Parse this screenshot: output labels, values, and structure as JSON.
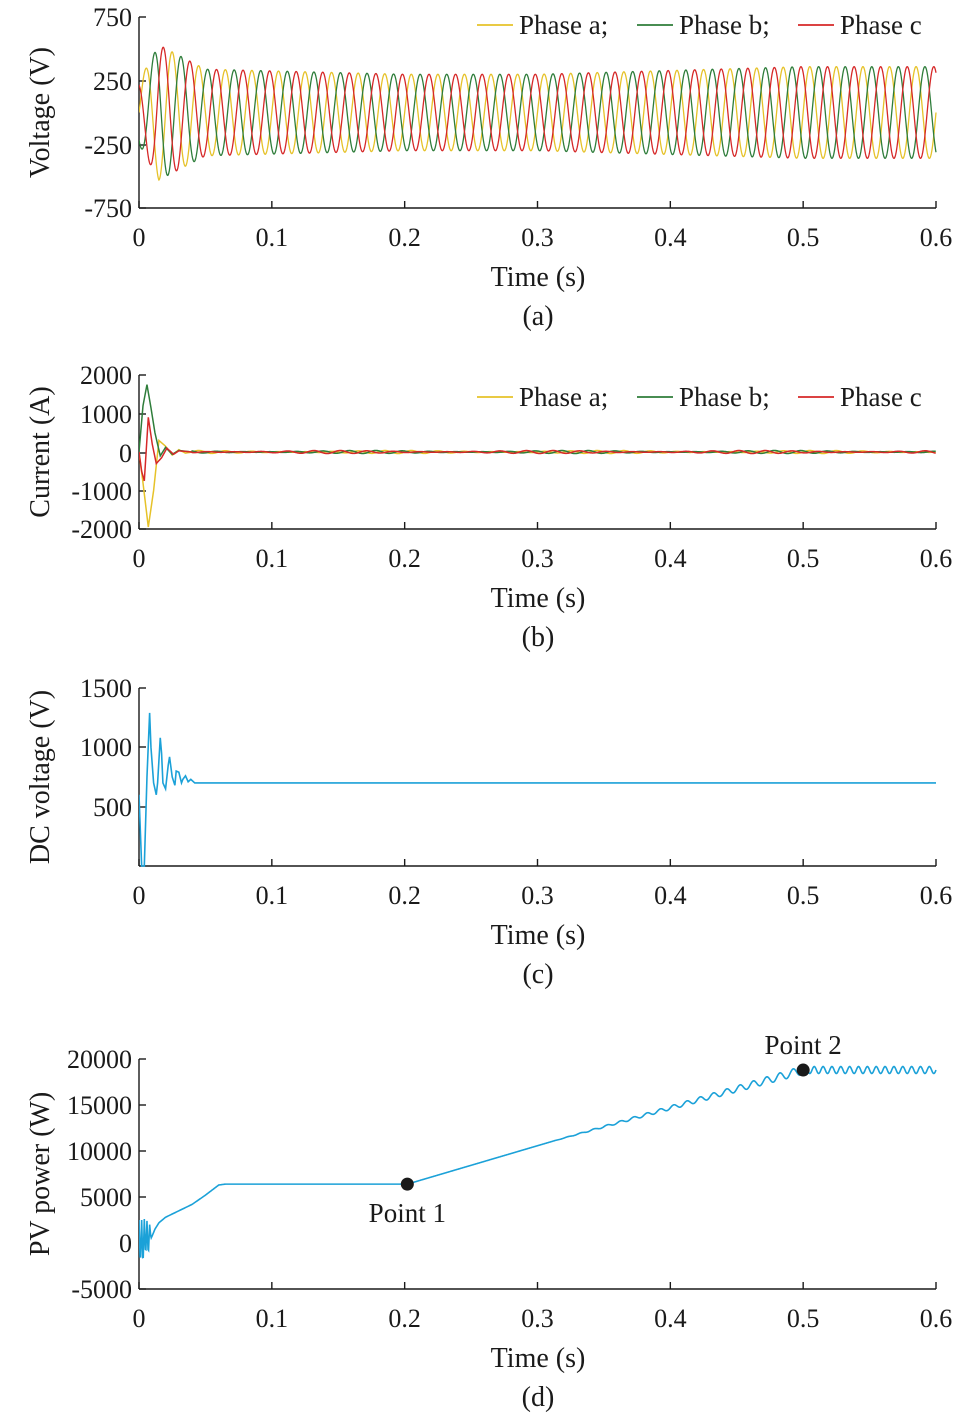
{
  "colors": {
    "phase_a": "#e6c229",
    "phase_b": "#2e7d3a",
    "phase_c": "#d62828",
    "single": "#1ba1d8",
    "marker": "#1a1a1a"
  },
  "chart_data": [
    {
      "id": "a",
      "type": "line",
      "caption": "(a)",
      "xlabel": "Time (s)",
      "ylabel": "Voltage (V)",
      "xlim": [
        0,
        0.6
      ],
      "ylim": [
        -750,
        750
      ],
      "xticks": [
        "0",
        "0.1",
        "0.2",
        "0.3",
        "0.4",
        "0.5",
        "0.6"
      ],
      "yticks": [
        "750",
        "250",
        "-250",
        "-750"
      ],
      "legend_position": "top-right",
      "legend_labels": [
        "Phase a;",
        "Phase b;",
        "Phase c"
      ],
      "series": [
        {
          "name": "Phase a",
          "color_key": "phase_a",
          "phase_deg": 0
        },
        {
          "name": "Phase b",
          "color_key": "phase_b",
          "phase_deg": -120
        },
        {
          "name": "Phase c",
          "color_key": "phase_c",
          "phase_deg": 120
        }
      ],
      "frequency_hz": 50,
      "envelope": {
        "t": [
          0,
          0.015,
          0.05,
          0.2,
          0.3,
          0.5,
          0.6
        ],
        "amplitude": [
          250,
          530,
          340,
          300,
          300,
          360,
          360
        ]
      }
    },
    {
      "id": "b",
      "type": "line",
      "caption": "(b)",
      "xlabel": "Time (s)",
      "ylabel": "Current (A)",
      "xlim": [
        0,
        0.6
      ],
      "ylim": [
        -2000,
        2000
      ],
      "xticks": [
        "0",
        "0.1",
        "0.2",
        "0.3",
        "0.4",
        "0.5",
        "0.6"
      ],
      "yticks": [
        "2000",
        "1000",
        "0",
        "-1000",
        "-2000"
      ],
      "legend_position": "top-right",
      "legend_labels": [
        "Phase a;",
        "Phase b;",
        "Phase c"
      ],
      "series": [
        {
          "name": "Phase a",
          "color_key": "phase_a",
          "t": [
            0,
            0.003,
            0.007,
            0.011,
            0.015,
            0.02,
            0.025,
            0.03,
            0.035,
            0.04
          ],
          "y": [
            0,
            -800,
            -1950,
            -1000,
            300,
            150,
            -80,
            60,
            -30,
            0
          ]
        },
        {
          "name": "Phase b",
          "color_key": "phase_b",
          "t": [
            0,
            0.003,
            0.006,
            0.009,
            0.012,
            0.016,
            0.02,
            0.025,
            0.03,
            0.04
          ],
          "y": [
            0,
            1200,
            1750,
            1150,
            500,
            -100,
            120,
            -60,
            40,
            0
          ]
        },
        {
          "name": "Phase c",
          "color_key": "phase_c",
          "t": [
            0,
            0.002,
            0.004,
            0.007,
            0.01,
            0.013,
            0.017,
            0.021,
            0.026,
            0.03,
            0.04
          ],
          "y": [
            0,
            -500,
            -750,
            900,
            200,
            -300,
            -150,
            100,
            -60,
            30,
            0
          ]
        }
      ],
      "steady_ripple_amplitude": 40
    },
    {
      "id": "c",
      "type": "line",
      "caption": "(c)",
      "xlabel": "Time (s)",
      "ylabel": "DC voltage (V)",
      "xlim": [
        0,
        0.6
      ],
      "ylim": [
        0,
        1500
      ],
      "xticks": [
        "0",
        "0.1",
        "0.2",
        "0.3",
        "0.4",
        "0.5",
        "0.6"
      ],
      "yticks": [
        "1500",
        "1000",
        "500"
      ],
      "series": [
        {
          "name": "",
          "color_key": "single",
          "t": [
            0,
            0.002,
            0.004,
            0.006,
            0.008,
            0.009,
            0.011,
            0.013,
            0.014,
            0.016,
            0.017,
            0.018,
            0.02,
            0.022,
            0.023,
            0.025,
            0.027,
            0.028,
            0.03,
            0.032,
            0.033,
            0.035,
            0.037,
            0.039,
            0.042,
            0.6
          ],
          "y": [
            600,
            0,
            0,
            750,
            1290,
            1000,
            700,
            600,
            700,
            1080,
            950,
            700,
            650,
            850,
            920,
            750,
            680,
            800,
            790,
            700,
            730,
            760,
            710,
            730,
            700,
            700
          ]
        }
      ]
    },
    {
      "id": "d",
      "type": "line",
      "caption": "(d)",
      "xlabel": "Time (s)",
      "ylabel": "PV power (W)",
      "xlim": [
        0,
        0.6
      ],
      "ylim": [
        -5000,
        20000
      ],
      "xticks": [
        "0",
        "0.1",
        "0.2",
        "0.3",
        "0.4",
        "0.5",
        "0.6"
      ],
      "yticks": [
        "20000",
        "15000",
        "10000",
        "5000",
        "0",
        "-5000"
      ],
      "series": [
        {
          "name": "",
          "color_key": "single",
          "t": [
            0,
            0.001,
            0.002,
            0.003,
            0.004,
            0.005,
            0.006,
            0.007,
            0.008,
            0.009,
            0.01,
            0.012,
            0.015,
            0.02,
            0.03,
            0.04,
            0.05,
            0.06,
            0.065,
            0.08,
            0.1,
            0.15,
            0.202,
            0.31,
            0.5,
            0.6
          ],
          "y": [
            2500,
            -2500,
            2500,
            -2600,
            2600,
            -1500,
            2400,
            -1500,
            2000,
            500,
            800,
            1500,
            2200,
            2800,
            3500,
            4200,
            5200,
            6300,
            6400,
            6400,
            6400,
            6400,
            6400,
            11000,
            18800,
            18800
          ]
        }
      ],
      "annotations": [
        {
          "label": "Point 1",
          "t": 0.202,
          "y": 6400,
          "label_position": "below"
        },
        {
          "label": "Point 2",
          "t": 0.5,
          "y": 18800,
          "label_position": "above"
        }
      ]
    }
  ]
}
